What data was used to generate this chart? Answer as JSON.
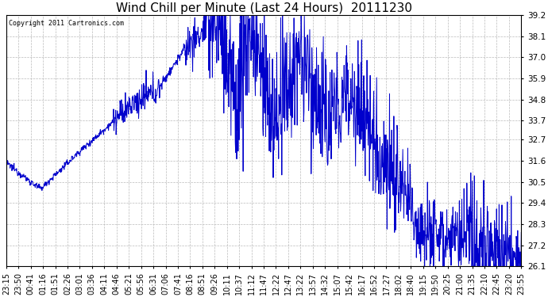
{
  "title": "Wind Chill per Minute (Last 24 Hours)  20111230",
  "copyright": "Copyright 2011 Cartronics.com",
  "line_color": "#0000CC",
  "bg_color": "#ffffff",
  "grid_color": "#bbbbbb",
  "ylim": [
    26.1,
    39.2
  ],
  "yticks": [
    26.1,
    27.2,
    28.3,
    29.4,
    30.5,
    31.6,
    32.7,
    33.7,
    34.8,
    35.9,
    37.0,
    38.1,
    39.2
  ],
  "title_fontsize": 11,
  "tick_fontsize": 7.5,
  "x_labels": [
    "23:15",
    "23:50",
    "00:41",
    "01:16",
    "01:51",
    "02:26",
    "03:01",
    "03:36",
    "04:11",
    "04:46",
    "05:21",
    "05:56",
    "06:31",
    "07:06",
    "07:41",
    "08:16",
    "08:51",
    "09:26",
    "10:11",
    "10:37",
    "11:12",
    "11:47",
    "12:22",
    "12:47",
    "13:22",
    "13:57",
    "14:32",
    "15:07",
    "15:42",
    "16:17",
    "16:52",
    "17:27",
    "18:02",
    "18:40",
    "19:15",
    "19:50",
    "20:25",
    "21:00",
    "21:35",
    "22:10",
    "22:45",
    "23:20",
    "23:55"
  ]
}
